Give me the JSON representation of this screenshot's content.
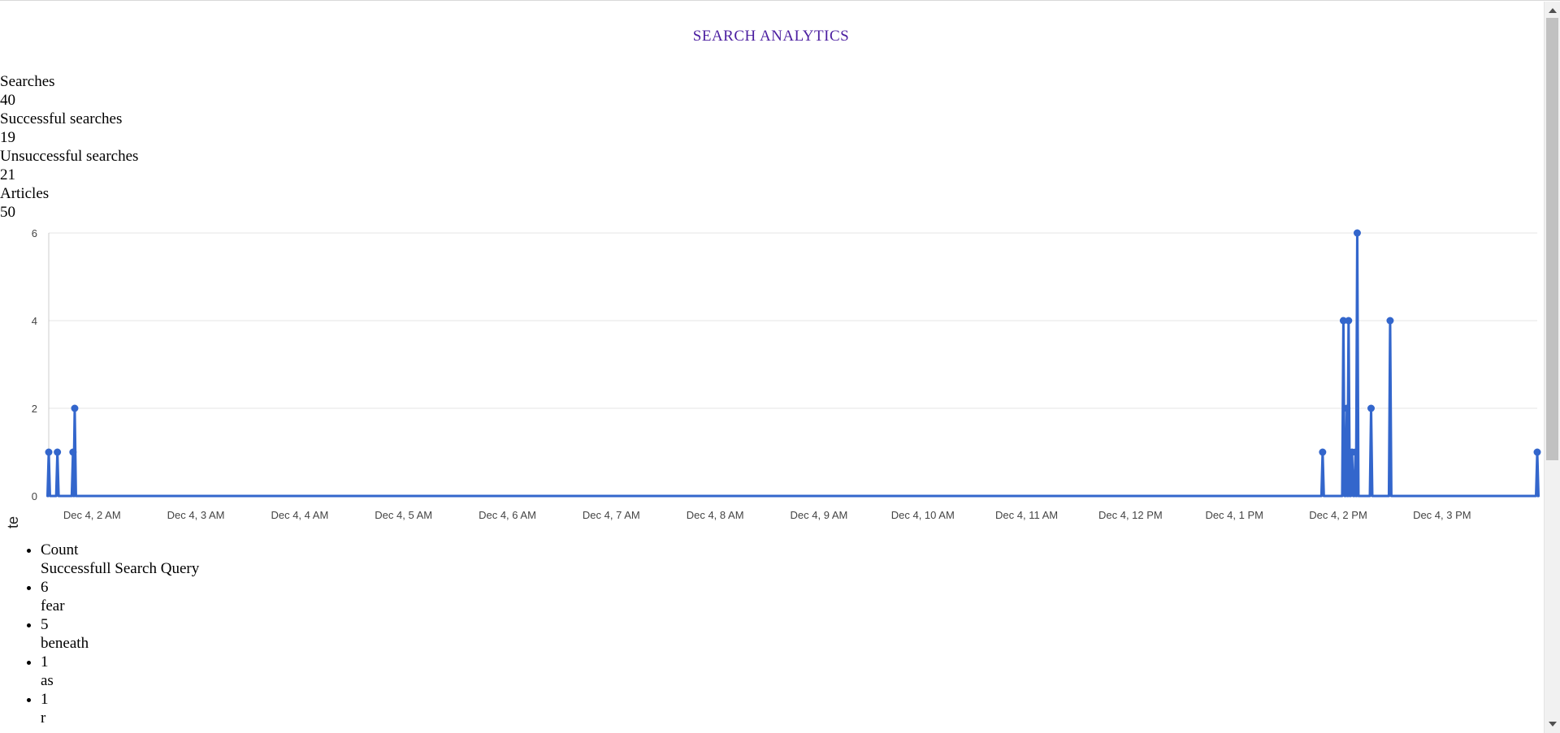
{
  "header": {
    "title": "SEARCH ANALYTICS"
  },
  "stats": [
    {
      "label": "Searches",
      "value": "40"
    },
    {
      "label": "Successful searches",
      "value": "19"
    },
    {
      "label": "Unsuccessful searches",
      "value": "21"
    },
    {
      "label": "Articles",
      "value": "50"
    }
  ],
  "chart_data": {
    "type": "line",
    "ylabel": "Searches per minute",
    "xlabel": "",
    "title": "",
    "ylim": [
      0,
      6
    ],
    "yticks": [
      0,
      2,
      4,
      6
    ],
    "grid": true,
    "legend": "none",
    "line_color": "#3366cc",
    "x_range": [
      "Dec 4, 1:35 AM",
      "Dec 4, 3:55 PM"
    ],
    "x_tick_labels": [
      "Dec 4, 2 AM",
      "Dec 4, 3 AM",
      "Dec 4, 4 AM",
      "Dec 4, 5 AM",
      "Dec 4, 6 AM",
      "Dec 4, 7 AM",
      "Dec 4, 8 AM",
      "Dec 4, 9 AM",
      "Dec 4, 10 AM",
      "Dec 4, 11 AM",
      "Dec 4, 12 PM",
      "Dec 4, 1 PM",
      "Dec 4, 2 PM",
      "Dec 4, 3 PM"
    ],
    "points": [
      {
        "x": "Dec 4, 1:35 AM",
        "y": 1
      },
      {
        "x": "Dec 4, 1:40 AM",
        "y": 1
      },
      {
        "x": "Dec 4, 1:49 AM",
        "y": 1
      },
      {
        "x": "Dec 4, 1:50 AM",
        "y": 2
      },
      {
        "x": "Dec 4, 1:51 PM",
        "y": 1
      },
      {
        "x": "Dec 4, 2:03 PM",
        "y": 4
      },
      {
        "x": "Dec 4, 2:05 PM",
        "y": 2
      },
      {
        "x": "Dec 4, 2:06 PM",
        "y": 4
      },
      {
        "x": "Dec 4, 2:08 PM",
        "y": 1
      },
      {
        "x": "Dec 4, 2:10 PM",
        "y": 1
      },
      {
        "x": "Dec 4, 2:11 PM",
        "y": 6
      },
      {
        "x": "Dec 4, 2:19 PM",
        "y": 2
      },
      {
        "x": "Dec 4, 2:30 PM",
        "y": 4
      },
      {
        "x": "Dec 4, 3:55 PM",
        "y": 1
      }
    ]
  },
  "queries": [
    {
      "count": "Count",
      "query": "Successfull Search Query"
    },
    {
      "count": "6",
      "query": "fear"
    },
    {
      "count": "5",
      "query": "beneath"
    },
    {
      "count": "1",
      "query": "as"
    },
    {
      "count": "1",
      "query": "r"
    }
  ]
}
